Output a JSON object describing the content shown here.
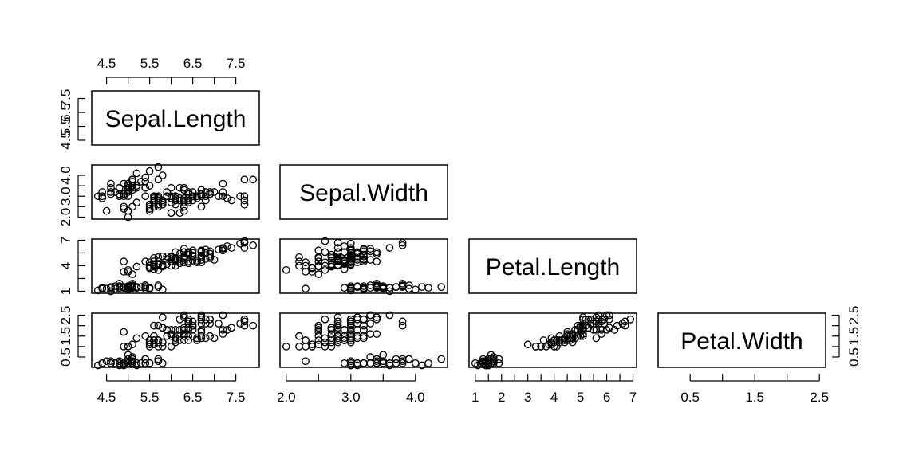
{
  "chart_data": {
    "type": "scatter",
    "kind": "scatterplot-matrix",
    "layout": "lower-triangle",
    "variables": [
      "Sepal.Length",
      "Sepal.Width",
      "Petal.Length",
      "Petal.Width"
    ],
    "ranges": [
      [
        4.3,
        7.9
      ],
      [
        2.0,
        4.4
      ],
      [
        1.0,
        6.9
      ],
      [
        0.1,
        2.5
      ]
    ],
    "axis_ticks": {
      "Sepal.Length": [
        "4.5",
        "5.5",
        "6.5",
        "7.5"
      ],
      "Sepal.Width": [
        "2.0",
        "3.0",
        "4.0"
      ],
      "Petal.Length": [
        "1",
        "2",
        "3",
        "4",
        "5",
        "6",
        "7"
      ],
      "Petal.Width": [
        "0.5",
        "1.5",
        "2.5"
      ]
    },
    "left_axis_ticks": {
      "Sepal.Length": [
        "4.5",
        "5.5",
        "6.5",
        "7.5"
      ],
      "Sepal.Width": [
        "2.0",
        "3.0",
        "4.0"
      ],
      "Petal.Length": [
        "1",
        "4",
        "7"
      ],
      "Petal.Width": [
        "0.5",
        "1.5",
        "2.5"
      ]
    },
    "right_axis_ticks": {
      "Petal.Width": [
        "0.5",
        "1.5",
        "2.5"
      ]
    },
    "points": [
      [
        5.1,
        3.5,
        1.4,
        0.2
      ],
      [
        4.9,
        3.0,
        1.4,
        0.2
      ],
      [
        4.7,
        3.2,
        1.3,
        0.2
      ],
      [
        4.6,
        3.1,
        1.5,
        0.2
      ],
      [
        5.0,
        3.6,
        1.4,
        0.2
      ],
      [
        5.4,
        3.9,
        1.7,
        0.4
      ],
      [
        4.6,
        3.4,
        1.4,
        0.3
      ],
      [
        5.0,
        3.4,
        1.5,
        0.2
      ],
      [
        4.4,
        2.9,
        1.4,
        0.2
      ],
      [
        4.9,
        3.1,
        1.5,
        0.1
      ],
      [
        5.4,
        3.7,
        1.5,
        0.2
      ],
      [
        4.8,
        3.4,
        1.6,
        0.2
      ],
      [
        4.8,
        3.0,
        1.4,
        0.1
      ],
      [
        4.3,
        3.0,
        1.1,
        0.1
      ],
      [
        5.8,
        4.0,
        1.2,
        0.2
      ],
      [
        5.7,
        4.4,
        1.5,
        0.4
      ],
      [
        5.4,
        3.9,
        1.3,
        0.4
      ],
      [
        5.1,
        3.5,
        1.4,
        0.3
      ],
      [
        5.7,
        3.8,
        1.7,
        0.3
      ],
      [
        5.1,
        3.8,
        1.5,
        0.3
      ],
      [
        5.4,
        3.4,
        1.7,
        0.2
      ],
      [
        5.1,
        3.7,
        1.5,
        0.4
      ],
      [
        4.6,
        3.6,
        1.0,
        0.2
      ],
      [
        5.1,
        3.3,
        1.7,
        0.5
      ],
      [
        4.8,
        3.4,
        1.9,
        0.2
      ],
      [
        5.0,
        3.0,
        1.6,
        0.2
      ],
      [
        5.0,
        3.4,
        1.6,
        0.4
      ],
      [
        5.2,
        3.5,
        1.5,
        0.2
      ],
      [
        5.2,
        3.4,
        1.4,
        0.2
      ],
      [
        4.7,
        3.2,
        1.6,
        0.2
      ],
      [
        4.8,
        3.1,
        1.6,
        0.2
      ],
      [
        5.4,
        3.4,
        1.5,
        0.4
      ],
      [
        5.2,
        4.1,
        1.5,
        0.1
      ],
      [
        5.5,
        4.2,
        1.4,
        0.2
      ],
      [
        4.9,
        3.1,
        1.5,
        0.2
      ],
      [
        5.0,
        3.2,
        1.2,
        0.2
      ],
      [
        5.5,
        3.5,
        1.3,
        0.2
      ],
      [
        4.9,
        3.6,
        1.4,
        0.1
      ],
      [
        4.4,
        3.0,
        1.3,
        0.2
      ],
      [
        5.1,
        3.4,
        1.5,
        0.2
      ],
      [
        5.0,
        3.5,
        1.3,
        0.3
      ],
      [
        4.5,
        2.3,
        1.3,
        0.3
      ],
      [
        4.4,
        3.2,
        1.3,
        0.2
      ],
      [
        5.0,
        3.5,
        1.6,
        0.6
      ],
      [
        5.1,
        3.8,
        1.9,
        0.4
      ],
      [
        4.8,
        3.0,
        1.4,
        0.3
      ],
      [
        5.1,
        3.8,
        1.6,
        0.2
      ],
      [
        4.6,
        3.2,
        1.4,
        0.2
      ],
      [
        5.3,
        3.7,
        1.5,
        0.2
      ],
      [
        5.0,
        3.3,
        1.4,
        0.2
      ],
      [
        7.0,
        3.2,
        4.7,
        1.4
      ],
      [
        6.4,
        3.2,
        4.5,
        1.5
      ],
      [
        6.9,
        3.1,
        4.9,
        1.5
      ],
      [
        5.5,
        2.3,
        4.0,
        1.3
      ],
      [
        6.5,
        2.8,
        4.6,
        1.5
      ],
      [
        5.7,
        2.8,
        4.5,
        1.3
      ],
      [
        6.3,
        3.3,
        4.7,
        1.6
      ],
      [
        4.9,
        2.4,
        3.3,
        1.0
      ],
      [
        6.6,
        2.9,
        4.6,
        1.3
      ],
      [
        5.2,
        2.7,
        3.9,
        1.4
      ],
      [
        5.0,
        2.0,
        3.5,
        1.0
      ],
      [
        5.9,
        3.0,
        4.2,
        1.5
      ],
      [
        6.0,
        2.2,
        4.0,
        1.0
      ],
      [
        6.1,
        2.9,
        4.7,
        1.4
      ],
      [
        5.6,
        2.9,
        3.6,
        1.3
      ],
      [
        6.7,
        3.1,
        4.4,
        1.4
      ],
      [
        5.6,
        3.0,
        4.5,
        1.5
      ],
      [
        5.8,
        2.7,
        4.1,
        1.0
      ],
      [
        6.2,
        2.2,
        4.5,
        1.5
      ],
      [
        5.6,
        2.5,
        3.9,
        1.1
      ],
      [
        5.9,
        3.2,
        4.8,
        1.8
      ],
      [
        6.1,
        2.8,
        4.0,
        1.3
      ],
      [
        6.3,
        2.5,
        4.9,
        1.5
      ],
      [
        6.1,
        2.8,
        4.7,
        1.2
      ],
      [
        6.4,
        2.9,
        4.3,
        1.3
      ],
      [
        6.6,
        3.0,
        4.4,
        1.4
      ],
      [
        6.8,
        2.8,
        4.8,
        1.4
      ],
      [
        6.7,
        3.0,
        5.0,
        1.7
      ],
      [
        6.0,
        2.9,
        4.5,
        1.5
      ],
      [
        5.7,
        2.6,
        3.5,
        1.0
      ],
      [
        5.5,
        2.4,
        3.8,
        1.1
      ],
      [
        5.5,
        2.4,
        3.7,
        1.0
      ],
      [
        5.8,
        2.7,
        3.9,
        1.2
      ],
      [
        6.0,
        2.7,
        5.1,
        1.6
      ],
      [
        5.4,
        3.0,
        4.5,
        1.5
      ],
      [
        6.0,
        3.4,
        4.5,
        1.6
      ],
      [
        6.7,
        3.1,
        4.7,
        1.5
      ],
      [
        6.3,
        2.3,
        4.4,
        1.3
      ],
      [
        5.6,
        3.0,
        4.1,
        1.3
      ],
      [
        5.5,
        2.5,
        4.0,
        1.3
      ],
      [
        5.5,
        2.6,
        4.4,
        1.2
      ],
      [
        6.1,
        3.0,
        4.6,
        1.4
      ],
      [
        5.8,
        2.6,
        4.0,
        1.2
      ],
      [
        5.0,
        2.3,
        3.3,
        1.0
      ],
      [
        5.6,
        2.7,
        4.2,
        1.3
      ],
      [
        5.7,
        3.0,
        4.2,
        1.2
      ],
      [
        5.7,
        2.9,
        4.2,
        1.3
      ],
      [
        6.2,
        2.9,
        4.3,
        1.3
      ],
      [
        5.1,
        2.5,
        3.0,
        1.1
      ],
      [
        5.7,
        2.8,
        4.1,
        1.3
      ],
      [
        6.3,
        3.3,
        6.0,
        2.5
      ],
      [
        5.8,
        2.7,
        5.1,
        1.9
      ],
      [
        7.1,
        3.0,
        5.9,
        2.1
      ],
      [
        6.3,
        2.9,
        5.6,
        1.8
      ],
      [
        6.5,
        3.0,
        5.8,
        2.2
      ],
      [
        7.6,
        3.0,
        6.6,
        2.1
      ],
      [
        4.9,
        2.5,
        4.5,
        1.7
      ],
      [
        7.3,
        2.9,
        6.3,
        1.8
      ],
      [
        6.7,
        2.5,
        5.8,
        1.8
      ],
      [
        7.2,
        3.6,
        6.1,
        2.5
      ],
      [
        6.5,
        3.2,
        5.1,
        2.0
      ],
      [
        6.4,
        2.7,
        5.3,
        1.9
      ],
      [
        6.8,
        3.0,
        5.5,
        2.1
      ],
      [
        5.7,
        2.5,
        5.0,
        2.0
      ],
      [
        5.8,
        2.8,
        5.1,
        2.4
      ],
      [
        6.4,
        3.2,
        5.3,
        2.3
      ],
      [
        6.5,
        3.0,
        5.5,
        1.8
      ],
      [
        7.7,
        3.8,
        6.7,
        2.2
      ],
      [
        7.7,
        2.6,
        6.9,
        2.3
      ],
      [
        6.0,
        2.2,
        5.0,
        1.5
      ],
      [
        6.9,
        3.2,
        5.7,
        2.3
      ],
      [
        5.6,
        2.8,
        4.9,
        2.0
      ],
      [
        7.7,
        2.8,
        6.7,
        2.0
      ],
      [
        6.3,
        2.7,
        4.9,
        1.8
      ],
      [
        6.7,
        3.3,
        5.7,
        2.1
      ],
      [
        7.2,
        3.2,
        6.0,
        1.8
      ],
      [
        6.2,
        2.8,
        4.8,
        1.8
      ],
      [
        6.1,
        3.0,
        4.9,
        1.8
      ],
      [
        6.4,
        2.8,
        5.6,
        2.1
      ],
      [
        7.2,
        3.0,
        5.8,
        1.6
      ],
      [
        7.4,
        2.8,
        6.1,
        1.9
      ],
      [
        7.9,
        3.8,
        6.4,
        2.0
      ],
      [
        6.4,
        2.8,
        5.6,
        2.2
      ],
      [
        6.3,
        2.8,
        5.1,
        1.5
      ],
      [
        6.1,
        2.6,
        5.6,
        1.4
      ],
      [
        7.7,
        3.0,
        6.1,
        2.3
      ],
      [
        6.3,
        3.4,
        5.6,
        2.4
      ],
      [
        6.4,
        3.1,
        5.5,
        1.8
      ],
      [
        6.0,
        3.0,
        4.8,
        1.8
      ],
      [
        6.9,
        3.1,
        5.4,
        2.1
      ],
      [
        6.7,
        3.1,
        5.6,
        2.4
      ],
      [
        6.9,
        3.1,
        5.1,
        2.3
      ],
      [
        5.8,
        2.7,
        5.1,
        1.9
      ],
      [
        6.8,
        3.2,
        5.9,
        2.3
      ],
      [
        6.7,
        3.3,
        5.7,
        2.5
      ],
      [
        6.7,
        3.0,
        5.2,
        2.3
      ],
      [
        6.3,
        2.5,
        5.0,
        1.9
      ],
      [
        6.5,
        3.0,
        5.2,
        2.0
      ],
      [
        6.2,
        3.4,
        5.4,
        2.3
      ],
      [
        5.9,
        3.0,
        5.1,
        1.8
      ]
    ]
  }
}
